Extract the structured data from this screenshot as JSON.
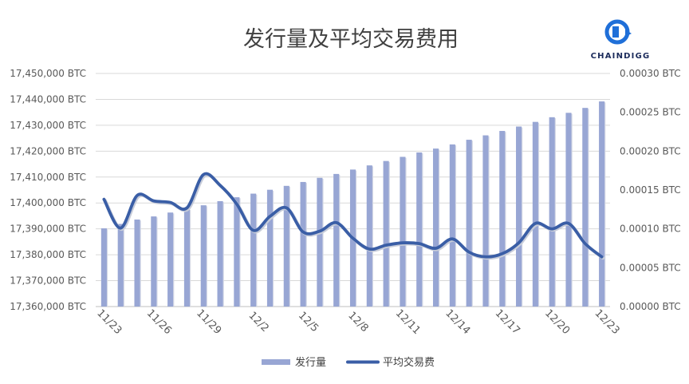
{
  "chart_data": {
    "type": "bar",
    "title": "发行量及平均交易费用",
    "categories": [
      "11/23",
      "11/24",
      "11/25",
      "11/26",
      "11/27",
      "11/28",
      "11/29",
      "11/30",
      "12/1",
      "12/2",
      "12/3",
      "12/4",
      "12/5",
      "12/6",
      "12/7",
      "12/8",
      "12/9",
      "12/10",
      "12/11",
      "12/12",
      "12/13",
      "12/14",
      "12/15",
      "12/16",
      "12/17",
      "12/18",
      "12/19",
      "12/20",
      "12/21",
      "12/22",
      "12/23"
    ],
    "x_tick_labels": [
      "11/23",
      "11/26",
      "11/29",
      "12/2",
      "12/5",
      "12/8",
      "12/11",
      "12/14",
      "12/17",
      "12/20",
      "12/23"
    ],
    "x_tick_every": 3,
    "y_left": {
      "min": 17360000,
      "max": 17450000,
      "step": 10000,
      "tick_labels": [
        "17,360,000 BTC",
        "17,370,000 BTC",
        "17,380,000 BTC",
        "17,390,000 BTC",
        "17,400,000 BTC",
        "17,410,000 BTC",
        "17,420,000 BTC",
        "17,430,000 BTC",
        "17,440,000 BTC",
        "17,450,000 BTC"
      ]
    },
    "y_right": {
      "min": 0,
      "max": 0.0003,
      "step": 5e-05,
      "tick_labels": [
        "0.00000 BTC",
        "0.00005 BTC",
        "0.00010 BTC",
        "0.00015 BTC",
        "0.00020 BTC",
        "0.00025 BTC",
        "0.00030 BTC"
      ]
    },
    "series": [
      {
        "name": "发行量",
        "type": "bar",
        "axis": "left",
        "color": "#98a6d4",
        "values": [
          17390200,
          17391900,
          17393600,
          17394800,
          17396300,
          17397700,
          17399100,
          17400700,
          17402200,
          17403600,
          17405100,
          17406600,
          17408100,
          17409700,
          17411200,
          17412900,
          17414500,
          17416200,
          17417800,
          17419500,
          17421000,
          17422600,
          17424400,
          17426100,
          17427800,
          17429500,
          17431300,
          17433100,
          17434800,
          17436700,
          17439200
        ]
      },
      {
        "name": "平均交易费",
        "type": "line",
        "axis": "right",
        "color": "#3a5ea6",
        "values": [
          0.000138,
          0.000101,
          0.000143,
          0.000136,
          0.000134,
          0.000127,
          0.00017,
          0.000156,
          0.000132,
          9.8e-05,
          0.000116,
          0.000127,
          9.6e-05,
          9.7e-05,
          0.000108,
          8.8e-05,
          7.4e-05,
          7.9e-05,
          8.2e-05,
          8.1e-05,
          7.5e-05,
          8.7e-05,
          7e-05,
          6.4e-05,
          6.8e-05,
          8.2e-05,
          0.000107,
          0.0001,
          0.000107,
          8.1e-05,
          6.4e-05
        ]
      }
    ],
    "grid": true,
    "legend_position": "bottom"
  },
  "logo": {
    "text": "CHAINDIGG"
  }
}
